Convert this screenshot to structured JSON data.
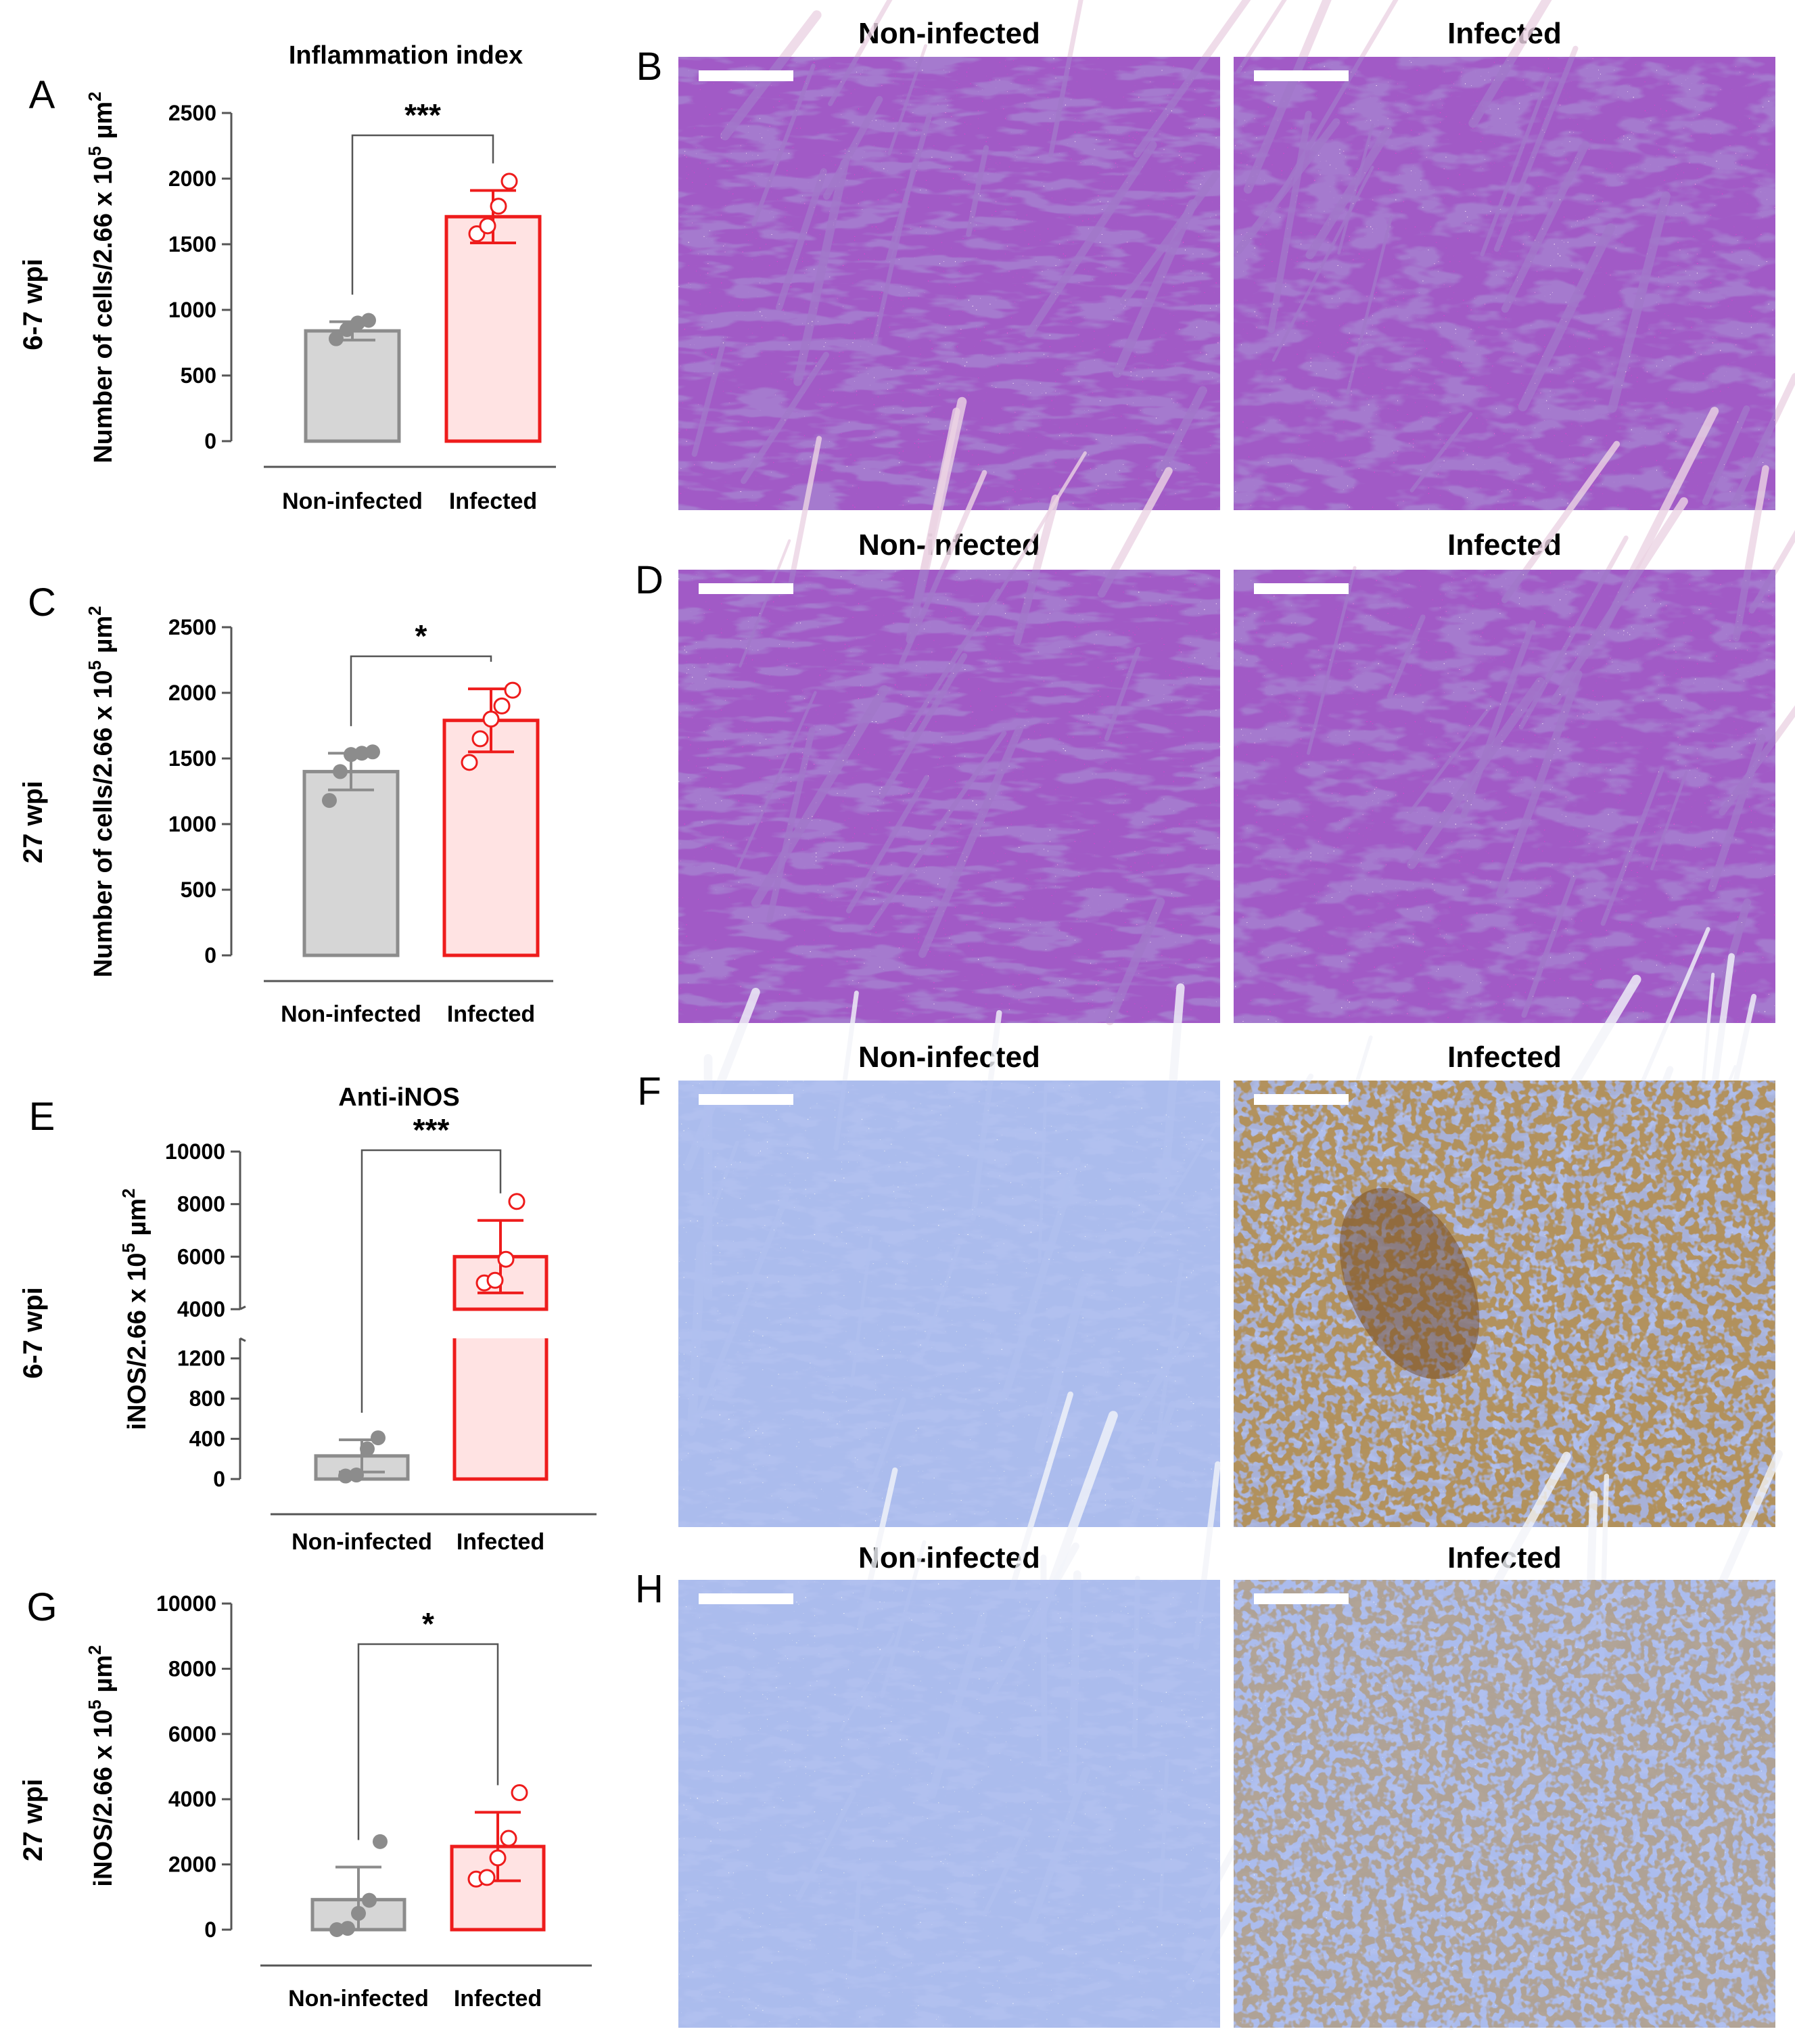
{
  "colors": {
    "control_fill": "#d6d6d6",
    "control_stroke": "#8c8c8c",
    "infected_fill": "#ffe3e3",
    "infected_stroke": "#ee1c1c",
    "he_stain": "#e73ed1",
    "ihc_background": "#dbe1ee",
    "ihc_positive": "#8a5a2b"
  },
  "rows": [
    {
      "panel_chart": "A",
      "panel_image": "B",
      "time_label": "6-7 wpi"
    },
    {
      "panel_chart": "C",
      "panel_image": "D",
      "time_label": "27 wpi"
    },
    {
      "panel_chart": "E",
      "panel_image": "F",
      "time_label": "6-7 wpi"
    },
    {
      "panel_chart": "G",
      "panel_image": "H",
      "time_label": "27 wpi"
    }
  ],
  "micrographs": [
    {
      "panel": "B",
      "stain": "H&E",
      "labels": [
        "Non-infected",
        "Infected"
      ]
    },
    {
      "panel": "D",
      "stain": "H&E",
      "labels": [
        "Non-infected",
        "Infected"
      ]
    },
    {
      "panel": "F",
      "stain": "anti-iNOS IHC",
      "labels": [
        "Non-infected",
        "Infected"
      ]
    },
    {
      "panel": "H",
      "stain": "anti-iNOS IHC",
      "labels": [
        "Non-infected",
        "Infected"
      ]
    }
  ],
  "chart_data": [
    {
      "panel": "A",
      "type": "bar",
      "title": "Inflammation index",
      "ylabel": "Number of cells/2.66 x 10",
      "ylabel_exp": "5",
      "ylabel_unit": " µm",
      "ylabel_unit_exp": "2",
      "categories": [
        "Non-infected",
        "Infected"
      ],
      "values": [
        840,
        1710
      ],
      "sd": [
        70,
        200
      ],
      "points": [
        [
          780,
          850,
          900,
          920
        ],
        [
          1580,
          1640,
          1790,
          1980
        ]
      ],
      "ylim": [
        0,
        2500
      ],
      "yticks": [
        0,
        500,
        1000,
        1500,
        2000,
        2500
      ],
      "significance": "***"
    },
    {
      "panel": "C",
      "type": "bar",
      "title": "",
      "ylabel": "Number of cells/2.66 x 10",
      "ylabel_exp": "5",
      "ylabel_unit": " µm",
      "ylabel_unit_exp": "2",
      "categories": [
        "Non-infected",
        "Infected"
      ],
      "values": [
        1400,
        1790
      ],
      "sd": [
        140,
        240
      ],
      "points": [
        [
          1180,
          1400,
          1530,
          1540,
          1550
        ],
        [
          1470,
          1650,
          1800,
          1900,
          2020
        ]
      ],
      "ylim": [
        0,
        2500
      ],
      "yticks": [
        0,
        500,
        1000,
        1500,
        2000,
        2500
      ],
      "significance": "*"
    },
    {
      "panel": "E",
      "type": "bar",
      "title": "Anti-iNOS",
      "ylabel": "iNOS/2.66 x 10",
      "ylabel_exp": "5",
      "ylabel_unit": " µm",
      "ylabel_unit_exp": "2",
      "categories": [
        "Non-infected",
        "Infected"
      ],
      "values": [
        230,
        6000
      ],
      "sd": [
        160,
        1380
      ],
      "points": [
        [
          30,
          40,
          300,
          410
        ],
        [
          5000,
          5100,
          5900,
          8100
        ]
      ],
      "broken_axis": {
        "lower": [
          0,
          1400
        ],
        "upper": [
          4000,
          10000
        ]
      },
      "yticks": [
        0,
        400,
        800,
        1200,
        4000,
        6000,
        8000,
        10000
      ],
      "significance": "***"
    },
    {
      "panel": "G",
      "type": "bar",
      "title": "",
      "ylabel": "iNOS/2.66 x 10",
      "ylabel_exp": "5",
      "ylabel_unit": " µm",
      "ylabel_unit_exp": "2",
      "categories": [
        "Non-infected",
        "Infected"
      ],
      "values": [
        920,
        2550
      ],
      "sd": [
        1000,
        1050
      ],
      "points": [
        [
          0,
          40,
          500,
          900,
          2700
        ],
        [
          1550,
          1600,
          2200,
          2800,
          4200
        ]
      ],
      "ylim": [
        0,
        10000
      ],
      "yticks": [
        0,
        2000,
        4000,
        6000,
        8000,
        10000
      ],
      "significance": "*"
    }
  ]
}
